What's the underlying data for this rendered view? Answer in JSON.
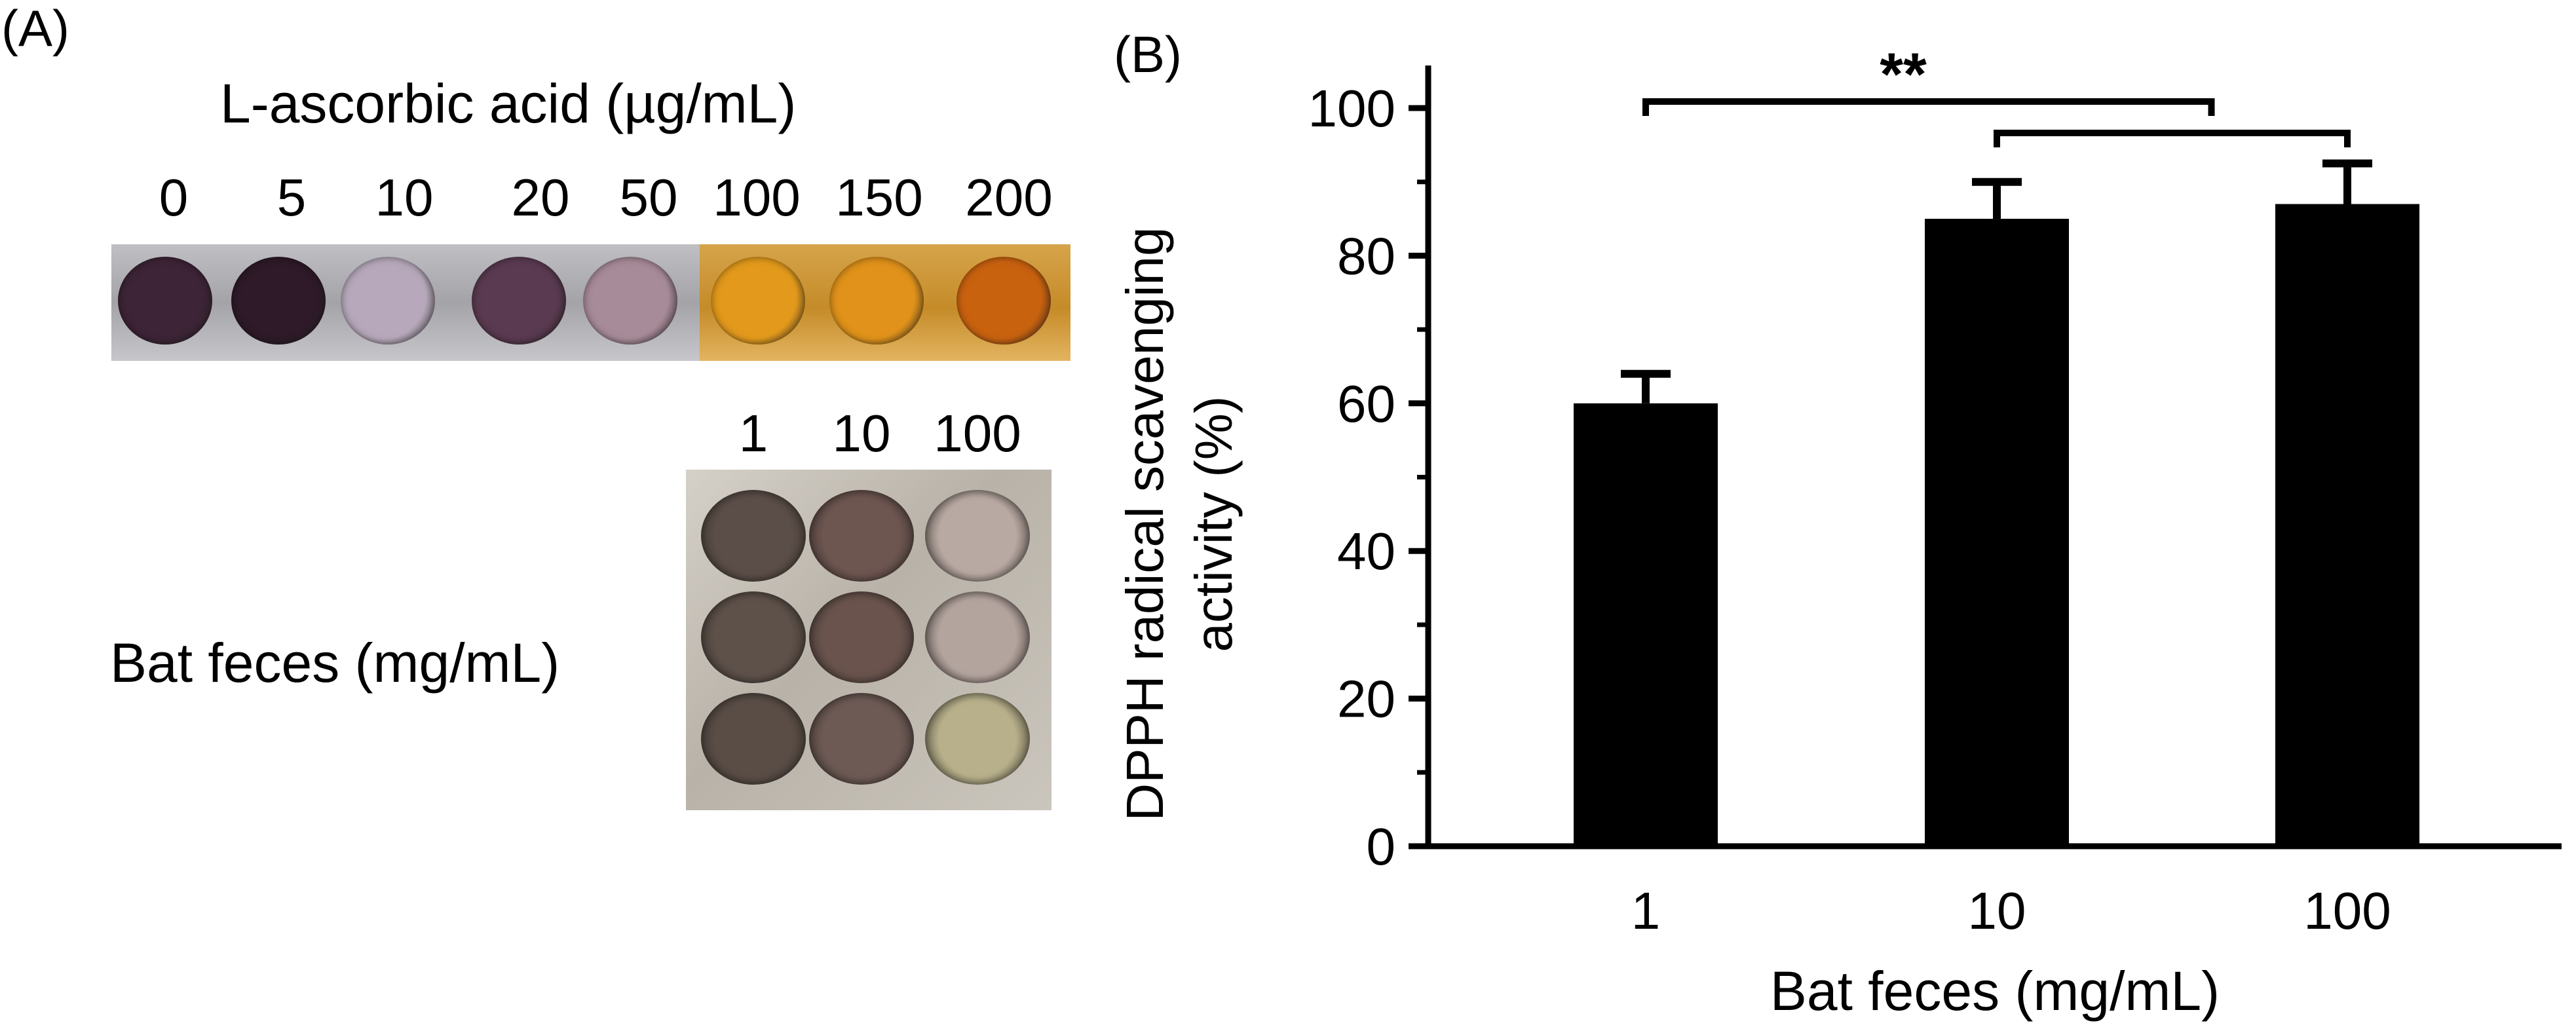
{
  "panel_a": {
    "label": "(A)",
    "title": "L-ascorbic acid (µg/mL)",
    "ascorbic_concentrations": [
      "0",
      "5",
      "10",
      "20",
      "50",
      "100",
      "150",
      "200"
    ],
    "ascorbic_well_colors": [
      "#3d2436",
      "#2e1a28",
      "#b7a9bb",
      "#5a3a50",
      "#a88b98",
      "#e39a1c",
      "#e0921a",
      "#c9620f"
    ],
    "bat_concentrations": [
      "1",
      "10",
      "100"
    ],
    "bat_label": "Bat feces (mg/mL)",
    "bat_well_colors": [
      [
        "#5b4e48",
        "#6d5550",
        "#b8a9a2"
      ],
      [
        "#5e514a",
        "#6a534d",
        "#b4a49e"
      ],
      [
        "#5a4d46",
        "#6e5a55",
        "#b7b08a"
      ]
    ]
  },
  "panel_b": {
    "label": "(B)"
  },
  "chart_data": {
    "type": "bar",
    "categories": [
      "1",
      "10",
      "100"
    ],
    "values": [
      60,
      85,
      87
    ],
    "errors": [
      4,
      5,
      5.5
    ],
    "title": "",
    "xlabel": "Bat feces (mg/mL)",
    "ylabel_lines": [
      "DPPH radical scavenging",
      "activity (%)"
    ],
    "ylim": [
      0,
      100
    ],
    "yticks": [
      "0",
      "20",
      "40",
      "60",
      "80",
      "100"
    ],
    "bar_color": "#000000",
    "significance": {
      "label": "**",
      "brackets": [
        {
          "from": "1",
          "to": "10-100 bracket"
        },
        {
          "from": "10",
          "to": "100"
        }
      ]
    }
  }
}
